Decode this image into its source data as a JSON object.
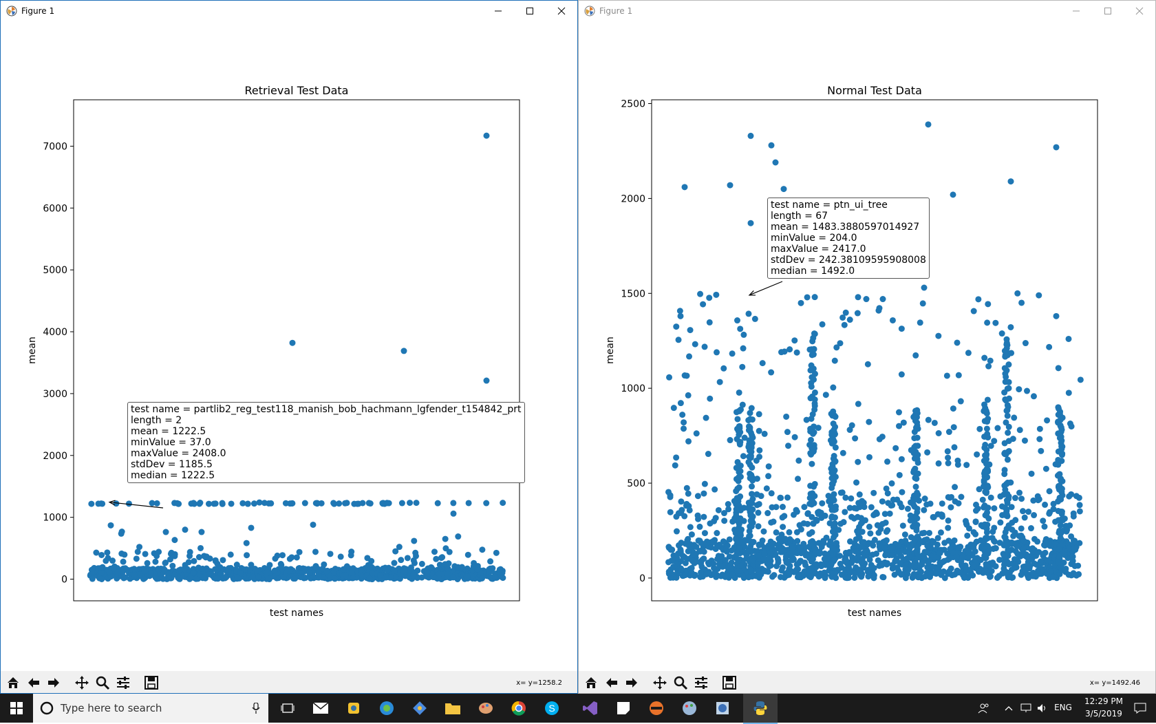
{
  "windows": [
    {
      "title": "Figure 1",
      "active": true,
      "coords": "x= y=1258.2",
      "chart_data": {
        "type": "scatter",
        "title": "Retrieval Test Data",
        "xlabel": "test names",
        "ylabel": "mean",
        "ylim": [
          -350,
          7750
        ],
        "yticks": [
          0,
          1000,
          2000,
          3000,
          4000,
          5000,
          6000,
          7000
        ],
        "ytick_labels": [
          "0",
          "1000",
          "2000",
          "3000",
          "4000",
          "5000",
          "6000",
          "7000"
        ],
        "xticks_shown": false,
        "color": "#1f77b4",
        "outliers": [
          [
            0.96,
            7170
          ],
          [
            0.49,
            3820
          ],
          [
            0.76,
            3690
          ],
          [
            0.96,
            3210
          ],
          [
            0.41,
            1240
          ],
          [
            0.02,
            1220
          ],
          [
            0.15,
            1230
          ],
          [
            0.32,
            1230
          ],
          [
            0.55,
            1230
          ],
          [
            0.66,
            1230
          ],
          [
            0.72,
            1230
          ],
          [
            0.05,
            870
          ],
          [
            0.23,
            800
          ],
          [
            0.39,
            830
          ],
          [
            0.54,
            880
          ],
          [
            0.88,
            1060
          ]
        ],
        "annotation": {
          "lines": [
            "test name = partlib2_reg_test118_manish_bob_hachmann_lgfender_t154842_prt",
            "length = 2",
            "mean = 1222.5",
            "minValue = 37.0",
            "maxValue = 2408.0",
            "stdDev = 1185.5",
            "median = 1222.5"
          ],
          "target": [
            0.04,
            1222.5
          ]
        }
      }
    },
    {
      "title": "Figure 1",
      "active": false,
      "coords": "x= y=1492.46",
      "chart_data": {
        "type": "scatter",
        "title": "Normal Test Data",
        "xlabel": "test names",
        "ylabel": "mean",
        "ylim": [
          -120,
          2520
        ],
        "yticks": [
          0,
          500,
          1000,
          1500,
          2000,
          2500
        ],
        "ytick_labels": [
          "0",
          "500",
          "1000",
          "1500",
          "2000",
          "2500"
        ],
        "xticks_shown": false,
        "color": "#1f77b4",
        "outliers": [
          [
            0.63,
            2390
          ],
          [
            0.2,
            2330
          ],
          [
            0.25,
            2280
          ],
          [
            0.26,
            2190
          ],
          [
            0.94,
            2270
          ],
          [
            0.83,
            2090
          ],
          [
            0.15,
            2070
          ],
          [
            0.04,
            2060
          ],
          [
            0.69,
            2020
          ],
          [
            0.28,
            2050
          ],
          [
            0.2,
            1870
          ],
          [
            0.35,
            1870
          ],
          [
            0.03,
            1380
          ],
          [
            0.62,
            1530
          ],
          [
            0.94,
            1380
          ],
          [
            0.97,
            1260
          ],
          [
            0.7,
            1240
          ],
          [
            0.46,
            1480
          ],
          [
            0.48,
            1470
          ],
          [
            0.52,
            1470
          ]
        ],
        "annotation": {
          "lines": [
            "test name = ptn_ui_tree",
            "length = 67",
            "mean = 1483.3880597014927",
            "minValue = 204.0",
            "maxValue = 2417.0",
            "stdDev = 242.38109595908008",
            "median = 1492.0"
          ],
          "target": [
            0.19,
            1483.39
          ]
        }
      }
    }
  ],
  "toolbar_icons": [
    "home-icon",
    "back-arrow-icon",
    "forward-arrow-icon",
    "pan-icon",
    "zoom-icon",
    "subplots-config-icon",
    "save-icon"
  ],
  "taskbar": {
    "search_placeholder": "Type here to search",
    "language": "ENG",
    "time": "12:29 PM",
    "date": "3/5/2019"
  },
  "colors": {
    "accent": "#1e6fb8",
    "marker": "#1f77b4",
    "taskbar": "#1b1b1b"
  }
}
